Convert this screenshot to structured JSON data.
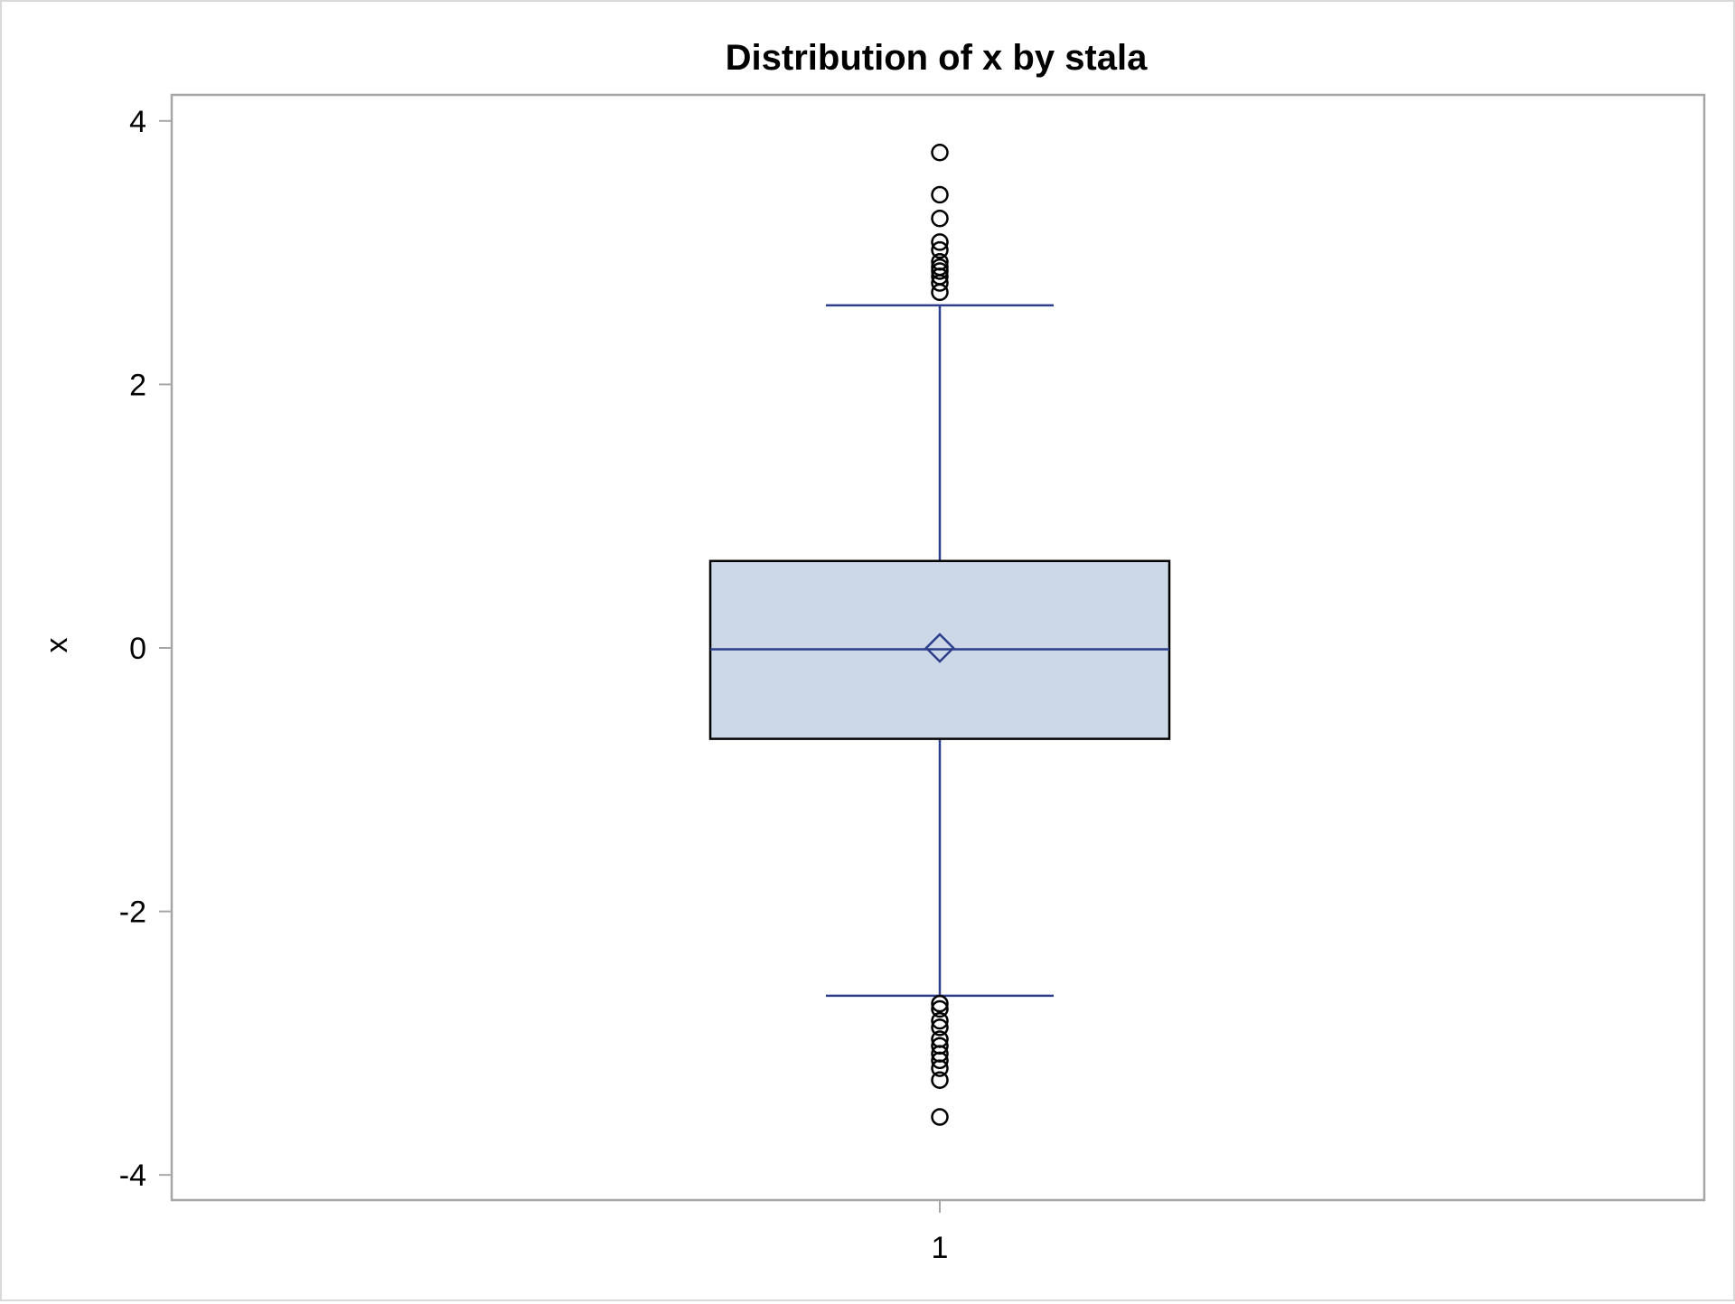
{
  "chart_data": {
    "type": "box",
    "title": "Distribution of x by stala",
    "xlabel": "",
    "ylabel": "x",
    "categories": [
      "1"
    ],
    "ylim": [
      -4.2,
      4.2
    ],
    "yticks": [
      -4,
      -2,
      0,
      2,
      4
    ],
    "ytick_labels": [
      "-4",
      "-2",
      "0",
      "2",
      "4"
    ],
    "grid": false,
    "legend": "none",
    "boxes": [
      {
        "category": "1",
        "whisker_low": -2.64,
        "q1": -0.69,
        "median": -0.01,
        "mean": 0.0,
        "q3": 0.66,
        "whisker_high": 2.6,
        "outliers_high": [
          2.7,
          2.77,
          2.82,
          2.86,
          2.89,
          2.93,
          3.02,
          3.08,
          3.26,
          3.44,
          3.76
        ],
        "outliers_low": [
          -2.7,
          -2.74,
          -2.83,
          -2.88,
          -2.97,
          -3.02,
          -3.08,
          -3.13,
          -3.19,
          -3.28,
          -3.56
        ]
      }
    ],
    "colors": {
      "box_fill": "#ccd7e7",
      "box_edge": "#000000",
      "whisker": "#2d3e8a",
      "median": "#2d3e8a",
      "mean_marker": "#2d3e8a",
      "outlier": "#000000",
      "frame": "#a6a6a6",
      "text": "#000000"
    }
  }
}
